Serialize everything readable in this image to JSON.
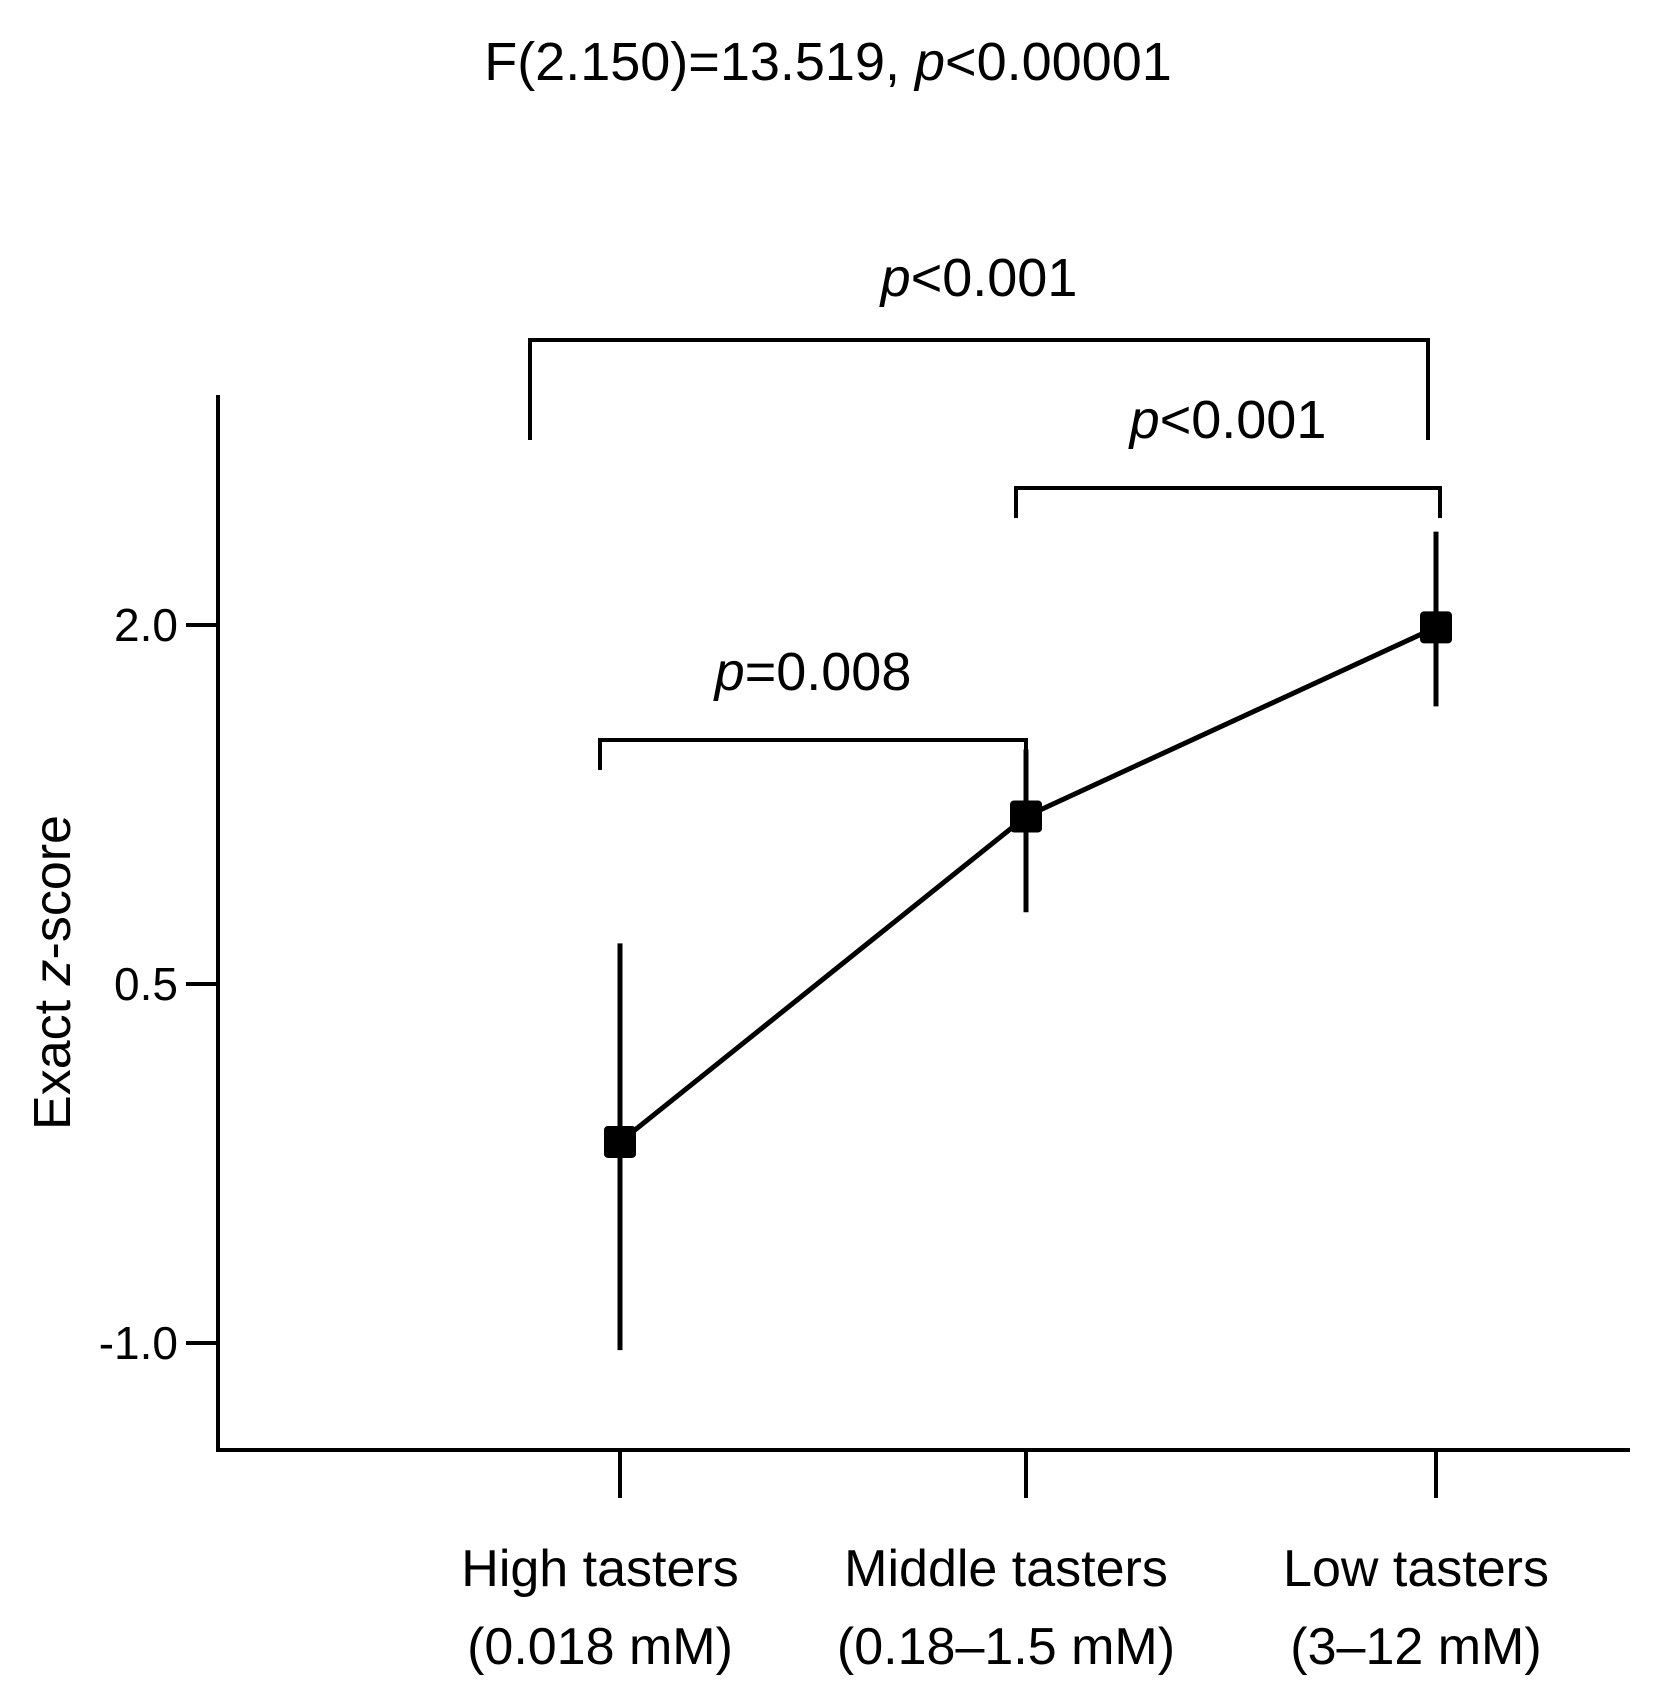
{
  "chart_data": {
    "type": "line",
    "title": "F(2.150)=13.519, p<0.00001",
    "title_parts": {
      "pre": "F(2.150)=13.519, ",
      "italic": "p",
      "post": "<0.00001"
    },
    "ylabel": "Exact z-score",
    "ylabel_parts": {
      "pre": "Exact ",
      "italic": "z",
      "post": "-score"
    },
    "xlabel": "",
    "categories": [
      {
        "line1": "High tasters",
        "line2": "(0.018 mM)"
      },
      {
        "line1": "Middle tasters",
        "line2": "(0.18–1.5 mM)"
      },
      {
        "line1": "Low tasters",
        "line2": "(3–12 mM)"
      }
    ],
    "series": [
      {
        "values": [
          -0.16,
          1.2,
          1.99
        ],
        "error_low": [
          -1.03,
          0.8,
          1.66
        ],
        "error_high": [
          0.67,
          1.48,
          2.39
        ]
      }
    ],
    "yticks": [
      {
        "value": -1.0,
        "label": "-1.0"
      },
      {
        "value": 0.5,
        "label": "0.5"
      },
      {
        "value": 2.0,
        "label": "2.0"
      }
    ],
    "ylim": [
      -1.45,
      3.0
    ],
    "grid": false,
    "comparisons": [
      {
        "from": 0,
        "to": 1,
        "label_italic": "p",
        "label_rest": "=0.008"
      },
      {
        "from": 1,
        "to": 2,
        "label_italic": "p",
        "label_rest": "<0.001"
      },
      {
        "from": 0,
        "to": 2,
        "label_italic": "p",
        "label_rest": "<0.001"
      }
    ],
    "colors": {
      "line": "#000000",
      "marker": "#000000"
    }
  }
}
